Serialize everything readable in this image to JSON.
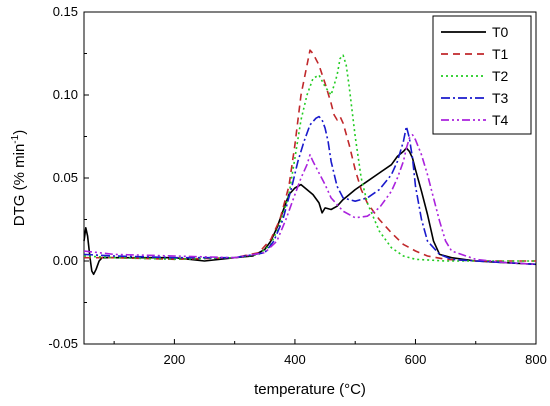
{
  "chart_data": {
    "type": "line",
    "title": "",
    "xlabel": "temperature (°C)",
    "ylabel_main": "DTG (% min",
    "ylabel_sup": "-1",
    "ylabel_close": ")",
    "xlim": [
      50,
      800
    ],
    "ylim": [
      -0.05,
      0.15
    ],
    "xticks": [
      200,
      400,
      600,
      800
    ],
    "yticks": [
      -0.05,
      0.0,
      0.05,
      0.1,
      0.15
    ],
    "ytick_labels": [
      "-0.05",
      "0.00",
      "0.05",
      "0.10",
      "0.15"
    ],
    "legend_position": "top-right",
    "grid": false,
    "series": [
      {
        "name": "T0",
        "color": "#000000",
        "dash": "",
        "x": [
          50,
          53,
          56,
          60,
          63,
          66,
          70,
          75,
          80,
          90,
          100,
          150,
          200,
          250,
          300,
          330,
          350,
          360,
          370,
          380,
          390,
          400,
          410,
          420,
          430,
          440,
          445,
          450,
          460,
          470,
          480,
          490,
          500,
          520,
          540,
          560,
          570,
          580,
          585,
          590,
          595,
          600,
          610,
          620,
          630,
          640,
          660,
          700,
          750,
          800
        ],
        "y": [
          0.012,
          0.02,
          0.015,
          0.002,
          -0.006,
          -0.008,
          -0.005,
          0.0,
          0.002,
          0.002,
          0.002,
          0.002,
          0.002,
          0.0,
          0.002,
          0.003,
          0.007,
          0.012,
          0.02,
          0.03,
          0.04,
          0.044,
          0.046,
          0.043,
          0.04,
          0.035,
          0.029,
          0.032,
          0.031,
          0.033,
          0.037,
          0.04,
          0.043,
          0.048,
          0.053,
          0.058,
          0.063,
          0.066,
          0.068,
          0.066,
          0.062,
          0.055,
          0.042,
          0.028,
          0.012,
          0.004,
          0.002,
          0.0,
          -0.001,
          -0.002
        ]
      },
      {
        "name": "T1",
        "color": "#c0282b",
        "dash": "7,5",
        "x": [
          50,
          100,
          200,
          300,
          340,
          360,
          375,
          390,
          400,
          410,
          420,
          425,
          430,
          440,
          450,
          460,
          465,
          470,
          475,
          480,
          490,
          500,
          510,
          520,
          540,
          560,
          580,
          600,
          620,
          650,
          700,
          750,
          800
        ],
        "y": [
          0.002,
          0.002,
          0.001,
          0.002,
          0.005,
          0.013,
          0.025,
          0.045,
          0.07,
          0.1,
          0.118,
          0.127,
          0.125,
          0.118,
          0.107,
          0.095,
          0.088,
          0.085,
          0.087,
          0.083,
          0.07,
          0.055,
          0.043,
          0.035,
          0.025,
          0.017,
          0.01,
          0.006,
          0.003,
          0.001,
          0.0,
          0.0,
          0.0
        ]
      },
      {
        "name": "T2",
        "color": "#22cc22",
        "dash": "2,3",
        "x": [
          50,
          100,
          200,
          300,
          340,
          360,
          375,
          390,
          400,
          410,
          420,
          430,
          440,
          450,
          460,
          470,
          475,
          480,
          485,
          490,
          495,
          500,
          510,
          520,
          540,
          560,
          580,
          600,
          650,
          700,
          750,
          800
        ],
        "y": [
          0.003,
          0.002,
          0.001,
          0.002,
          0.004,
          0.01,
          0.022,
          0.04,
          0.062,
          0.085,
          0.1,
          0.11,
          0.112,
          0.105,
          0.1,
          0.112,
          0.122,
          0.124,
          0.118,
          0.105,
          0.09,
          0.075,
          0.05,
          0.035,
          0.018,
          0.008,
          0.003,
          0.001,
          0.0,
          0.0,
          0.0,
          0.0
        ]
      },
      {
        "name": "T3",
        "color": "#1a1acc",
        "dash": "9,3,2,3",
        "x": [
          50,
          100,
          200,
          300,
          350,
          365,
          380,
          395,
          405,
          415,
          425,
          435,
          440,
          445,
          450,
          455,
          460,
          470,
          480,
          500,
          520,
          540,
          560,
          570,
          575,
          580,
          585,
          590,
          595,
          600,
          610,
          620,
          640,
          660,
          700,
          750,
          800
        ],
        "y": [
          0.004,
          0.003,
          0.002,
          0.002,
          0.005,
          0.012,
          0.025,
          0.045,
          0.06,
          0.072,
          0.082,
          0.086,
          0.087,
          0.085,
          0.08,
          0.072,
          0.06,
          0.045,
          0.038,
          0.036,
          0.038,
          0.043,
          0.052,
          0.06,
          0.066,
          0.072,
          0.081,
          0.074,
          0.062,
          0.045,
          0.025,
          0.012,
          0.004,
          0.001,
          0.0,
          -0.001,
          -0.002
        ]
      },
      {
        "name": "T4",
        "color": "#aa22dd",
        "dash": "8,3,2,3,2,3",
        "x": [
          50,
          100,
          200,
          300,
          350,
          370,
          385,
          400,
          410,
          420,
          425,
          430,
          440,
          450,
          460,
          480,
          500,
          520,
          540,
          560,
          570,
          580,
          585,
          590,
          595,
          600,
          610,
          620,
          630,
          640,
          650,
          660,
          700,
          750,
          800
        ],
        "y": [
          0.006,
          0.004,
          0.003,
          0.002,
          0.005,
          0.012,
          0.025,
          0.04,
          0.05,
          0.058,
          0.064,
          0.06,
          0.053,
          0.046,
          0.038,
          0.03,
          0.026,
          0.027,
          0.032,
          0.042,
          0.05,
          0.06,
          0.068,
          0.074,
          0.076,
          0.073,
          0.064,
          0.052,
          0.038,
          0.024,
          0.012,
          0.006,
          0.001,
          -0.001,
          -0.002
        ]
      }
    ]
  }
}
